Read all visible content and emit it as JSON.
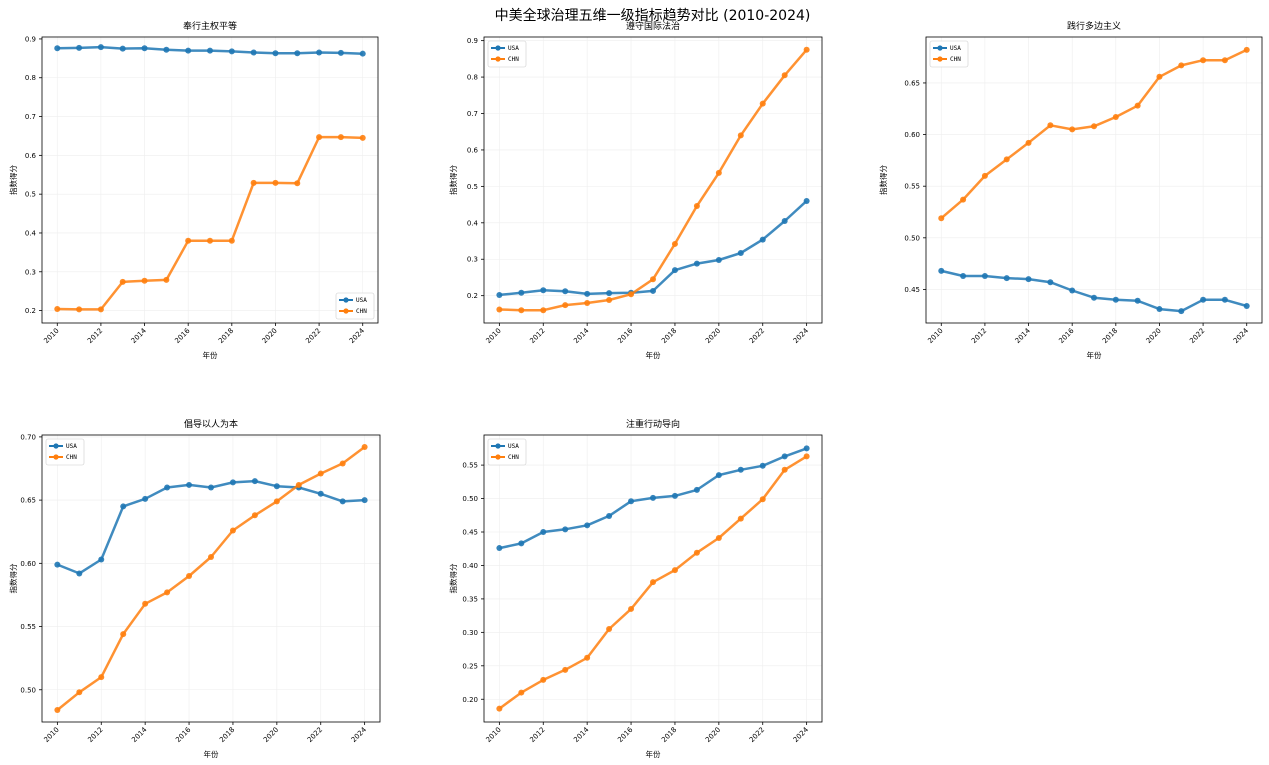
{
  "figure_title": "中美全球治理五维一级指标趋势对比 (2010-2024)",
  "colors": {
    "USA": "#1f77b4",
    "CHN": "#ff7f0e",
    "grid": "#eeeeee",
    "axes": "#000000"
  },
  "chart_data": [
    {
      "type": "line",
      "title": "奉行主权平等",
      "xlabel": "年份",
      "ylabel": "指数得分",
      "x": [
        2010,
        2011,
        2012,
        2013,
        2014,
        2015,
        2016,
        2017,
        2018,
        2019,
        2020,
        2021,
        2022,
        2023,
        2024
      ],
      "x_ticks": [
        2010,
        2012,
        2014,
        2016,
        2018,
        2020,
        2022,
        2024
      ],
      "xlim": [
        2009.3,
        2024.7
      ],
      "ylim": [
        0.168,
        0.905
      ],
      "y_ticks": [
        0.2,
        0.3,
        0.4,
        0.5,
        0.6,
        0.7,
        0.8,
        0.9
      ],
      "y_tick_labels": [
        "0.2",
        "0.3",
        "0.4",
        "0.5",
        "0.6",
        "0.7",
        "0.8",
        "0.9"
      ],
      "legend_position": "lower-right",
      "grid": true,
      "series": [
        {
          "name": "USA",
          "values": [
            0.876,
            0.877,
            0.879,
            0.875,
            0.876,
            0.872,
            0.87,
            0.87,
            0.868,
            0.865,
            0.863,
            0.863,
            0.865,
            0.864,
            0.862
          ]
        },
        {
          "name": "CHN",
          "values": [
            0.204,
            0.203,
            0.203,
            0.274,
            0.277,
            0.279,
            0.38,
            0.38,
            0.38,
            0.529,
            0.529,
            0.528,
            0.647,
            0.647,
            0.645
          ]
        }
      ]
    },
    {
      "type": "line",
      "title": "遵守国际法治",
      "xlabel": "年份",
      "ylabel": "指数得分",
      "x": [
        2010,
        2011,
        2012,
        2013,
        2014,
        2015,
        2016,
        2017,
        2018,
        2019,
        2020,
        2021,
        2022,
        2023,
        2024
      ],
      "x_ticks": [
        2010,
        2012,
        2014,
        2016,
        2018,
        2020,
        2022,
        2024
      ],
      "xlim": [
        2009.3,
        2024.7
      ],
      "ylim": [
        0.125,
        0.91
      ],
      "y_ticks": [
        0.2,
        0.3,
        0.4,
        0.5,
        0.6,
        0.7,
        0.8,
        0.9
      ],
      "y_tick_labels": [
        "0.2",
        "0.3",
        "0.4",
        "0.5",
        "0.6",
        "0.7",
        "0.8",
        "0.9"
      ],
      "legend_position": "upper-left",
      "grid": true,
      "series": [
        {
          "name": "USA",
          "values": [
            0.202,
            0.208,
            0.215,
            0.212,
            0.205,
            0.207,
            0.208,
            0.213,
            0.27,
            0.288,
            0.298,
            0.317,
            0.354,
            0.405,
            0.46
          ]
        },
        {
          "name": "CHN",
          "values": [
            0.162,
            0.16,
            0.16,
            0.174,
            0.18,
            0.188,
            0.204,
            0.245,
            0.342,
            0.446,
            0.537,
            0.64,
            0.727,
            0.805,
            0.875
          ]
        }
      ]
    },
    {
      "type": "line",
      "title": "践行多边主义",
      "xlabel": "年份",
      "ylabel": "指数得分",
      "x": [
        2010,
        2011,
        2012,
        2013,
        2014,
        2015,
        2016,
        2017,
        2018,
        2019,
        2020,
        2021,
        2022,
        2023,
        2024
      ],
      "x_ticks": [
        2010,
        2012,
        2014,
        2016,
        2018,
        2020,
        2022,
        2024
      ],
      "xlim": [
        2009.3,
        2024.7
      ],
      "ylim": [
        0.4175,
        0.6945
      ],
      "y_ticks": [
        0.45,
        0.5,
        0.55,
        0.6,
        0.65
      ],
      "y_tick_labels": [
        "0.45",
        "0.50",
        "0.55",
        "0.60",
        "0.65"
      ],
      "legend_position": "upper-left",
      "grid": true,
      "series": [
        {
          "name": "USA",
          "values": [
            0.468,
            0.463,
            0.463,
            0.461,
            0.46,
            0.457,
            0.449,
            0.442,
            0.44,
            0.439,
            0.431,
            0.429,
            0.44,
            0.44,
            0.434
          ]
        },
        {
          "name": "CHN",
          "values": [
            0.519,
            0.537,
            0.56,
            0.576,
            0.592,
            0.609,
            0.605,
            0.608,
            0.617,
            0.628,
            0.656,
            0.667,
            0.672,
            0.672,
            0.682
          ]
        }
      ]
    },
    {
      "type": "line",
      "title": "倡导以人为本",
      "xlabel": "年份",
      "ylabel": "指数得分",
      "x": [
        2010,
        2011,
        2012,
        2013,
        2014,
        2015,
        2016,
        2017,
        2018,
        2019,
        2020,
        2021,
        2022,
        2023,
        2024
      ],
      "x_ticks": [
        2010,
        2012,
        2014,
        2016,
        2018,
        2020,
        2022,
        2024
      ],
      "xlim": [
        2009.3,
        2024.7
      ],
      "ylim": [
        0.4745,
        0.7015
      ],
      "y_ticks": [
        0.5,
        0.55,
        0.6,
        0.65,
        0.7
      ],
      "y_tick_labels": [
        "0.50",
        "0.55",
        "0.60",
        "0.65",
        "0.70"
      ],
      "legend_position": "upper-left",
      "grid": true,
      "series": [
        {
          "name": "USA",
          "values": [
            0.599,
            0.592,
            0.603,
            0.645,
            0.651,
            0.66,
            0.662,
            0.66,
            0.664,
            0.665,
            0.661,
            0.66,
            0.655,
            0.649,
            0.65
          ]
        },
        {
          "name": "CHN",
          "values": [
            0.484,
            0.498,
            0.51,
            0.544,
            0.568,
            0.577,
            0.59,
            0.605,
            0.626,
            0.638,
            0.649,
            0.662,
            0.671,
            0.679,
            0.692
          ]
        }
      ]
    },
    {
      "type": "line",
      "title": "注重行动导向",
      "xlabel": "年份",
      "ylabel": "指数得分",
      "x": [
        2010,
        2011,
        2012,
        2013,
        2014,
        2015,
        2016,
        2017,
        2018,
        2019,
        2020,
        2021,
        2022,
        2023,
        2024
      ],
      "x_ticks": [
        2010,
        2012,
        2014,
        2016,
        2018,
        2020,
        2022,
        2024
      ],
      "xlim": [
        2009.3,
        2024.7
      ],
      "ylim": [
        0.166,
        0.595
      ],
      "y_ticks": [
        0.2,
        0.25,
        0.3,
        0.35,
        0.4,
        0.45,
        0.5,
        0.55
      ],
      "y_tick_labels": [
        "0.20",
        "0.25",
        "0.30",
        "0.35",
        "0.40",
        "0.45",
        "0.50",
        "0.55"
      ],
      "legend_position": "upper-left",
      "grid": true,
      "series": [
        {
          "name": "USA",
          "values": [
            0.426,
            0.433,
            0.45,
            0.454,
            0.46,
            0.474,
            0.496,
            0.501,
            0.504,
            0.513,
            0.535,
            0.543,
            0.549,
            0.563,
            0.575
          ]
        },
        {
          "name": "CHN",
          "values": [
            0.186,
            0.21,
            0.229,
            0.244,
            0.262,
            0.305,
            0.335,
            0.375,
            0.393,
            0.419,
            0.441,
            0.47,
            0.499,
            0.543,
            0.563
          ]
        }
      ]
    }
  ]
}
